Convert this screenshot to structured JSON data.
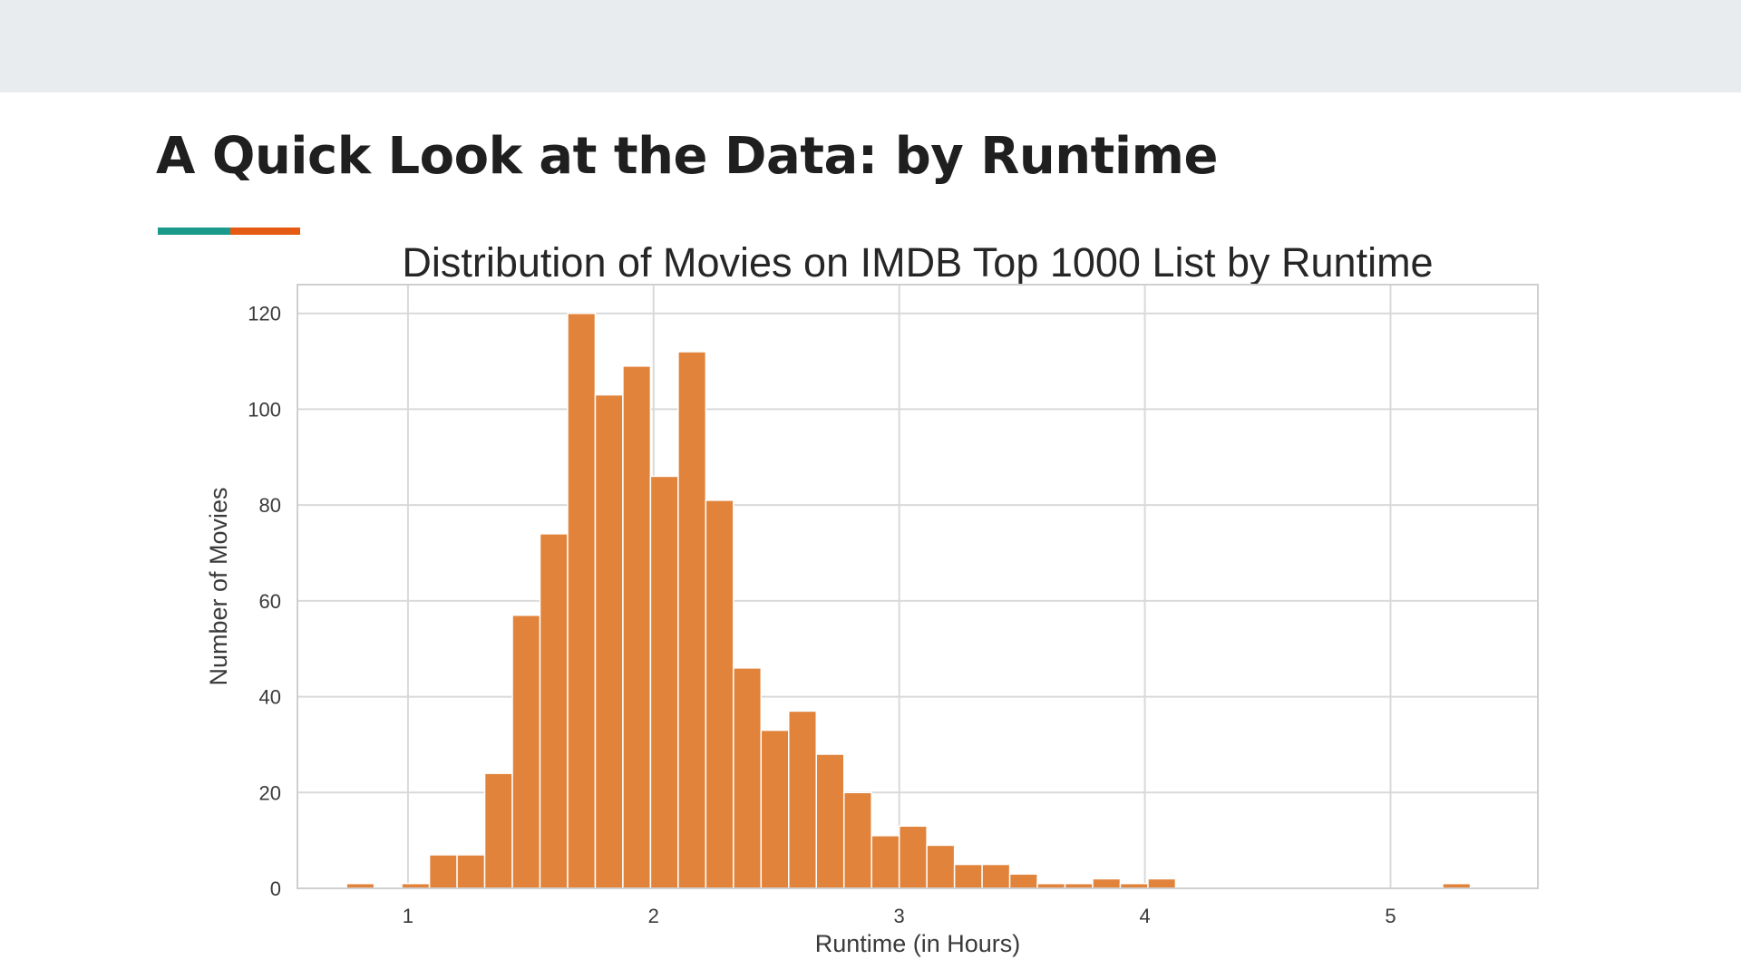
{
  "slide": {
    "title": "A Quick Look at the Data: by Runtime",
    "band_color": "#e8ecee",
    "accent_colors": [
      "#1a9a8a",
      "#e55a12"
    ]
  },
  "chart_data": {
    "type": "bar",
    "title": "Distribution of Movies on IMDB Top 1000 List by Runtime",
    "xlabel": "Runtime (in Hours)",
    "ylabel": "Number of Movies",
    "xlim": [
      0.55,
      5.6
    ],
    "ylim": [
      0,
      126
    ],
    "xticks": [
      1,
      2,
      3,
      4,
      5
    ],
    "yticks": [
      0,
      20,
      40,
      60,
      80,
      100,
      120
    ],
    "grid": true,
    "bar_color": "#e1833b",
    "bin_width": 0.1125,
    "bins": [
      {
        "x0": 0.75,
        "count": 1
      },
      {
        "x0": 0.8625,
        "count": 0
      },
      {
        "x0": 0.975,
        "count": 1
      },
      {
        "x0": 1.0875,
        "count": 7
      },
      {
        "x0": 1.2,
        "count": 7
      },
      {
        "x0": 1.3125,
        "count": 24
      },
      {
        "x0": 1.425,
        "count": 57
      },
      {
        "x0": 1.5375,
        "count": 74
      },
      {
        "x0": 1.65,
        "count": 120
      },
      {
        "x0": 1.7625,
        "count": 103
      },
      {
        "x0": 1.875,
        "count": 109
      },
      {
        "x0": 1.9875,
        "count": 86
      },
      {
        "x0": 2.1,
        "count": 112
      },
      {
        "x0": 2.2125,
        "count": 81
      },
      {
        "x0": 2.325,
        "count": 46
      },
      {
        "x0": 2.4375,
        "count": 33
      },
      {
        "x0": 2.55,
        "count": 37
      },
      {
        "x0": 2.6625,
        "count": 28
      },
      {
        "x0": 2.775,
        "count": 20
      },
      {
        "x0": 2.8875,
        "count": 11
      },
      {
        "x0": 3.0,
        "count": 13
      },
      {
        "x0": 3.1125,
        "count": 9
      },
      {
        "x0": 3.225,
        "count": 5
      },
      {
        "x0": 3.3375,
        "count": 5
      },
      {
        "x0": 3.45,
        "count": 3
      },
      {
        "x0": 3.5625,
        "count": 1
      },
      {
        "x0": 3.675,
        "count": 1
      },
      {
        "x0": 3.7875,
        "count": 2
      },
      {
        "x0": 3.9,
        "count": 1
      },
      {
        "x0": 4.0125,
        "count": 2
      },
      {
        "x0": 5.2125,
        "count": 1
      }
    ]
  }
}
